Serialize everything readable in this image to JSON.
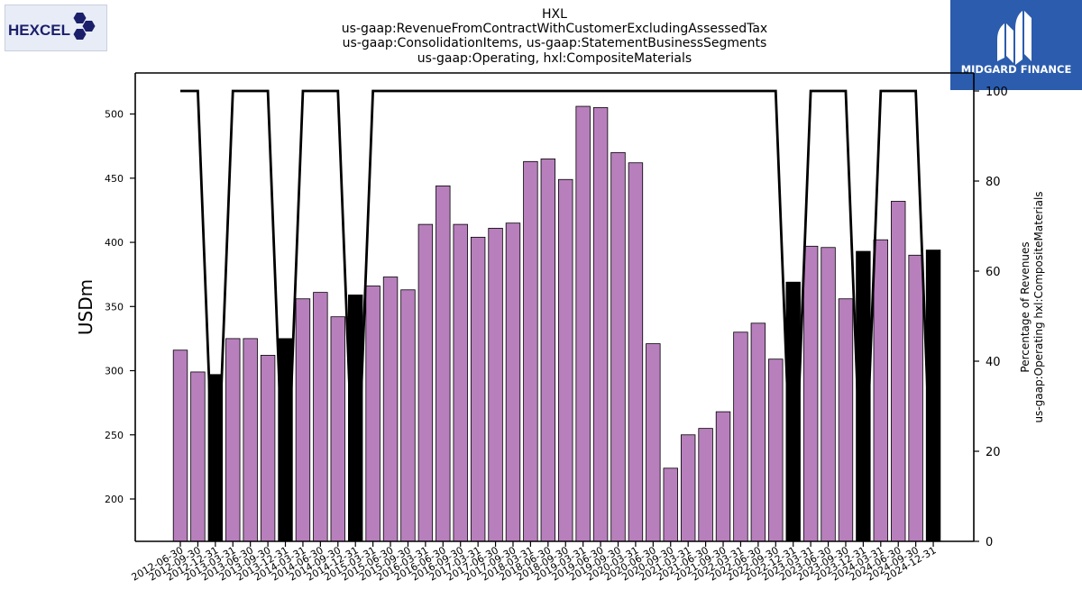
{
  "header": {
    "ticker": "HXL",
    "line2": "us-gaap:RevenueFromContractWithCustomerExcludingAssessedTax",
    "line3": "us-gaap:ConsolidationItems, us-gaap:StatementBusinessSegments",
    "line4": "us-gaap:Operating, hxl:CompositeMaterials"
  },
  "logos": {
    "left_text": "HEXCEL",
    "left_mark": "®",
    "right_text": "MIDGARD FINANCE"
  },
  "colors": {
    "bar_purple": "#b87fbd",
    "bar_black": "#000000",
    "line": "#000000",
    "left_logo_text": "#1b1f6b",
    "right_logo_bg": "#2b5cad"
  },
  "chart_data": {
    "type": "bar",
    "ylabel": "USDm",
    "y2label_line1": "Percentage of Revenues",
    "y2label_line2": "us-gaap:Operating hxl:CompositeMaterials",
    "ylim": [
      167,
      532
    ],
    "y2lim": [
      0,
      104
    ],
    "yticks": [
      200,
      250,
      300,
      350,
      400,
      450,
      500
    ],
    "y2ticks": [
      0,
      20,
      40,
      60,
      80,
      100
    ],
    "categories": [
      "2012-06-30",
      "2012-09-30",
      "2012-12-31",
      "2013-03-31",
      "2013-06-30",
      "2013-09-30",
      "2013-12-31",
      "2014-03-31",
      "2014-06-30",
      "2014-09-30",
      "2014-12-31",
      "2015-03-31",
      "2015-06-30",
      "2015-09-30",
      "2016-03-31",
      "2016-06-30",
      "2016-09-30",
      "2017-03-31",
      "2017-06-30",
      "2017-09-30",
      "2018-03-31",
      "2018-06-30",
      "2018-09-30",
      "2019-03-31",
      "2019-06-30",
      "2019-09-30",
      "2020-03-31",
      "2020-06-30",
      "2020-09-30",
      "2021-03-31",
      "2021-06-30",
      "2021-09-30",
      "2022-03-31",
      "2022-06-30",
      "2022-09-30",
      "2022-12-31",
      "2023-03-31",
      "2023-06-30",
      "2023-09-30",
      "2023-12-31",
      "2024-03-31",
      "2024-06-30",
      "2024-09-30",
      "2024-12-31"
    ],
    "values": [
      316,
      299,
      297,
      325,
      325,
      312,
      325,
      356,
      361,
      342,
      359,
      366,
      373,
      363,
      414,
      444,
      414,
      404,
      411,
      415,
      463,
      465,
      449,
      506,
      505,
      470,
      462,
      321,
      224,
      250,
      255,
      268,
      330,
      337,
      309,
      369,
      397,
      396,
      356,
      393,
      402,
      432,
      390,
      394
    ],
    "highlight": [
      false,
      false,
      true,
      false,
      false,
      false,
      true,
      false,
      false,
      false,
      true,
      false,
      false,
      false,
      false,
      false,
      false,
      false,
      false,
      false,
      false,
      false,
      false,
      false,
      false,
      false,
      false,
      false,
      false,
      false,
      false,
      false,
      false,
      false,
      false,
      true,
      false,
      false,
      false,
      true,
      false,
      false,
      false,
      true
    ],
    "percentage": [
      100,
      100,
      0,
      100,
      100,
      100,
      0,
      100,
      100,
      100,
      0,
      100,
      100,
      100,
      100,
      100,
      100,
      100,
      100,
      100,
      100,
      100,
      100,
      100,
      100,
      100,
      100,
      100,
      100,
      100,
      100,
      100,
      100,
      100,
      100,
      0,
      100,
      100,
      100,
      0,
      100,
      100,
      100,
      0
    ]
  }
}
